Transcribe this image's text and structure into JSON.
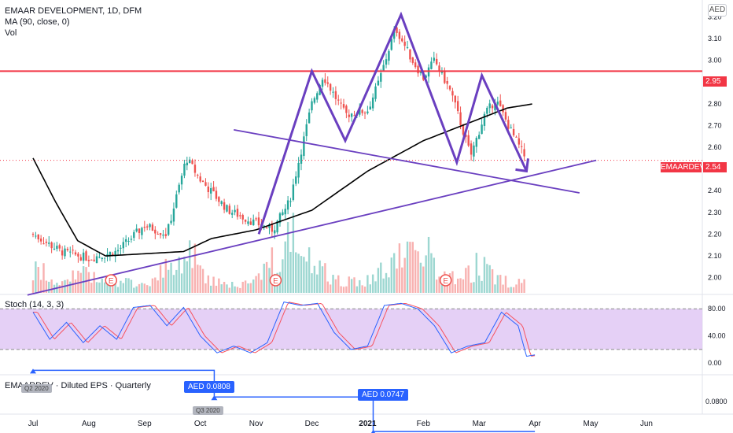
{
  "header": {
    "title": "EMAAR DEVELOPMENT, 1D, DFM",
    "ma_label": "MA (90, close, 0)",
    "vol_label": "Vol",
    "currency": "AED"
  },
  "stoch_panel": {
    "label": "Stoch (14, 3, 3)"
  },
  "eps_panel": {
    "label": "EMAARDEV · Diluted EPS · Quarterly",
    "points": [
      {
        "value_label": "AED 0.0808",
        "quarter_label": "Q2 2020"
      },
      {
        "value_label": "AED 0.0747",
        "quarter_label": "Q3 2020"
      }
    ]
  },
  "price_tags": {
    "resistance": "2.95",
    "current": "2.54",
    "symbol": "EMAARDEV"
  },
  "colors": {
    "resistance": "#f23645",
    "pattern": "#6a3fc0",
    "ma": "#000000",
    "up": "#26a69a",
    "down": "#ef5350",
    "stoch_k": "#2962ff",
    "stoch_d": "#f7525f",
    "stoch_band": "#e1c8f5"
  },
  "chart_data": [
    {
      "type": "candlestick",
      "title": "EMAAR DEVELOPMENT, 1D, DFM",
      "x_ticks": [
        "Jul",
        "Aug",
        "Sep",
        "Oct",
        "Nov",
        "Dec",
        "2021",
        "Feb",
        "Mar",
        "Apr",
        "May",
        "Jun"
      ],
      "y_ticks": [
        "2.00",
        "2.10",
        "2.20",
        "2.30",
        "2.40",
        "2.50",
        "2.60",
        "2.70",
        "2.80",
        "2.90",
        "3.00",
        "3.10",
        "3.20"
      ],
      "ylim": [
        1.93,
        3.27
      ],
      "close_path": [
        {
          "m": 0.0,
          "p": 2.2
        },
        {
          "m": 0.5,
          "p": 2.12
        },
        {
          "m": 1.0,
          "p": 2.09
        },
        {
          "m": 1.5,
          "p": 2.12
        },
        {
          "m": 2.0,
          "p": 2.24
        },
        {
          "m": 2.4,
          "p": 2.2
        },
        {
          "m": 2.75,
          "p": 2.55
        },
        {
          "m": 3.0,
          "p": 2.45
        },
        {
          "m": 3.5,
          "p": 2.31
        },
        {
          "m": 4.0,
          "p": 2.25
        },
        {
          "m": 4.3,
          "p": 2.22
        },
        {
          "m": 4.6,
          "p": 2.35
        },
        {
          "m": 5.0,
          "p": 2.8
        },
        {
          "m": 5.2,
          "p": 2.93
        },
        {
          "m": 5.6,
          "p": 2.75
        },
        {
          "m": 6.0,
          "p": 2.77
        },
        {
          "m": 6.2,
          "p": 2.9
        },
        {
          "m": 6.5,
          "p": 3.15
        },
        {
          "m": 6.8,
          "p": 3.0
        },
        {
          "m": 7.0,
          "p": 2.92
        },
        {
          "m": 7.2,
          "p": 3.0
        },
        {
          "m": 7.5,
          "p": 2.85
        },
        {
          "m": 7.85,
          "p": 2.56
        },
        {
          "m": 8.1,
          "p": 2.75
        },
        {
          "m": 8.3,
          "p": 2.82
        },
        {
          "m": 8.6,
          "p": 2.66
        },
        {
          "m": 8.85,
          "p": 2.54
        }
      ],
      "ma90": [
        {
          "m": 0.0,
          "p": 2.55
        },
        {
          "m": 0.4,
          "p": 2.35
        },
        {
          "m": 0.8,
          "p": 2.17
        },
        {
          "m": 1.3,
          "p": 2.1
        },
        {
          "m": 2.0,
          "p": 2.11
        },
        {
          "m": 2.7,
          "p": 2.12
        },
        {
          "m": 3.2,
          "p": 2.18
        },
        {
          "m": 4.0,
          "p": 2.22
        },
        {
          "m": 5.0,
          "p": 2.31
        },
        {
          "m": 6.0,
          "p": 2.49
        },
        {
          "m": 7.0,
          "p": 2.63
        },
        {
          "m": 8.0,
          "p": 2.73
        },
        {
          "m": 8.5,
          "p": 2.78
        },
        {
          "m": 8.98,
          "p": 2.8
        }
      ],
      "resistance": 2.95,
      "current_price": 2.54,
      "earnings_markers": [
        "E",
        "E",
        "E"
      ],
      "earnings_months": [
        1.4,
        4.35,
        7.4
      ],
      "pattern_points": [
        {
          "m": 4.05,
          "p": 2.2
        },
        {
          "m": 5.0,
          "p": 2.95
        },
        {
          "m": 5.6,
          "p": 2.63
        },
        {
          "m": 6.6,
          "p": 3.21
        },
        {
          "m": 7.6,
          "p": 2.53
        },
        {
          "m": 8.05,
          "p": 2.93
        },
        {
          "m": 8.85,
          "p": 2.49
        }
      ],
      "trendlines": [
        {
          "from": {
            "m": -0.1,
            "p": 1.92
          },
          "to": {
            "m": 10.1,
            "p": 2.54
          }
        },
        {
          "from": {
            "m": 3.6,
            "p": 2.68
          },
          "to": {
            "m": 9.8,
            "p": 2.39
          }
        }
      ],
      "volume": [
        {
          "m": 0.1,
          "v": 0.35
        },
        {
          "m": 0.5,
          "v": 0.2
        },
        {
          "m": 0.9,
          "v": 0.3
        },
        {
          "m": 1.3,
          "v": 0.18
        },
        {
          "m": 1.7,
          "v": 0.15
        },
        {
          "m": 2.1,
          "v": 0.2
        },
        {
          "m": 2.5,
          "v": 0.45
        },
        {
          "m": 2.8,
          "v": 0.6
        },
        {
          "m": 3.2,
          "v": 0.25
        },
        {
          "m": 3.6,
          "v": 0.12
        },
        {
          "m": 4.0,
          "v": 0.18
        },
        {
          "m": 4.3,
          "v": 0.65
        },
        {
          "m": 4.7,
          "v": 0.85
        },
        {
          "m": 5.0,
          "v": 0.55
        },
        {
          "m": 5.4,
          "v": 0.2
        },
        {
          "m": 5.8,
          "v": 0.18
        },
        {
          "m": 6.2,
          "v": 0.3
        },
        {
          "m": 6.6,
          "v": 0.55
        },
        {
          "m": 7.0,
          "v": 0.7
        },
        {
          "m": 7.3,
          "v": 0.3
        },
        {
          "m": 7.7,
          "v": 0.25
        },
        {
          "m": 8.0,
          "v": 0.45
        },
        {
          "m": 8.3,
          "v": 0.2
        },
        {
          "m": 8.6,
          "v": 0.18
        },
        {
          "m": 8.85,
          "v": 0.15
        }
      ]
    },
    {
      "type": "line",
      "title": "Stoch (14, 3, 3)",
      "y_ticks": [
        "80.00",
        "40.00",
        "0.00"
      ],
      "ylim": [
        -8,
        100
      ],
      "band": [
        20,
        80
      ],
      "k": [
        {
          "m": 0.0,
          "v": 75
        },
        {
          "m": 0.3,
          "v": 35
        },
        {
          "m": 0.6,
          "v": 60
        },
        {
          "m": 0.9,
          "v": 30
        },
        {
          "m": 1.2,
          "v": 55
        },
        {
          "m": 1.5,
          "v": 35
        },
        {
          "m": 1.8,
          "v": 82
        },
        {
          "m": 2.1,
          "v": 85
        },
        {
          "m": 2.4,
          "v": 55
        },
        {
          "m": 2.7,
          "v": 82
        },
        {
          "m": 3.0,
          "v": 40
        },
        {
          "m": 3.3,
          "v": 15
        },
        {
          "m": 3.6,
          "v": 25
        },
        {
          "m": 3.9,
          "v": 15
        },
        {
          "m": 4.2,
          "v": 30
        },
        {
          "m": 4.5,
          "v": 90
        },
        {
          "m": 4.8,
          "v": 85
        },
        {
          "m": 5.1,
          "v": 88
        },
        {
          "m": 5.4,
          "v": 45
        },
        {
          "m": 5.7,
          "v": 20
        },
        {
          "m": 6.0,
          "v": 25
        },
        {
          "m": 6.3,
          "v": 85
        },
        {
          "m": 6.6,
          "v": 88
        },
        {
          "m": 6.9,
          "v": 80
        },
        {
          "m": 7.2,
          "v": 55
        },
        {
          "m": 7.5,
          "v": 15
        },
        {
          "m": 7.8,
          "v": 25
        },
        {
          "m": 8.1,
          "v": 30
        },
        {
          "m": 8.4,
          "v": 75
        },
        {
          "m": 8.7,
          "v": 55
        },
        {
          "m": 8.85,
          "v": 10
        },
        {
          "m": 9.0,
          "v": 12
        }
      ]
    },
    {
      "type": "step",
      "title": "EMAARDEV · Diluted EPS · Quarterly",
      "y_ticks": [
        "0.0800"
      ],
      "points": [
        {
          "m": 0.0,
          "eps": 0.0855
        },
        {
          "m": 3.25,
          "eps": 0.0808
        },
        {
          "m": 6.1,
          "eps": 0.0747
        }
      ]
    }
  ]
}
